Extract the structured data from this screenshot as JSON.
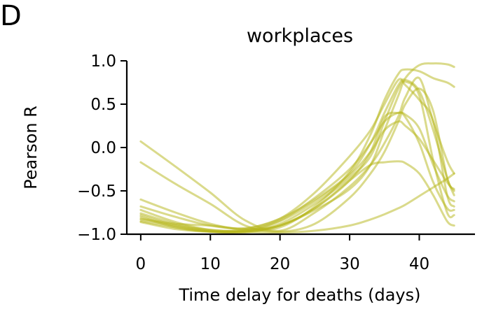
{
  "panel_label": "D",
  "chart_data": {
    "type": "line",
    "title": "workplaces",
    "xlabel": "Time delay for deaths (days)",
    "ylabel": "Pearson R",
    "xlim": [
      -2,
      48
    ],
    "ylim": [
      -1.0,
      1.0
    ],
    "xticks": [
      0,
      10,
      20,
      30,
      40
    ],
    "xtick_labels": [
      "0",
      "10",
      "20",
      "30",
      "40"
    ],
    "yticks": [
      -1.0,
      -0.5,
      0.0,
      0.5,
      1.0
    ],
    "ytick_labels": [
      "−1.0",
      "−0.5",
      "0.0",
      "0.5",
      "1.0"
    ],
    "grid": false,
    "line_color": "#b5b517",
    "x": [
      0,
      5,
      10,
      15,
      20,
      25,
      30,
      33,
      35,
      37,
      38,
      40,
      42,
      44,
      45
    ],
    "series": [
      {
        "values": [
          0.07,
          -0.22,
          -0.52,
          -0.84,
          -0.96,
          -0.75,
          -0.45,
          -0.2,
          0.05,
          0.36,
          0.58,
          0.8,
          0.3,
          -0.15,
          -0.3
        ]
      },
      {
        "values": [
          -0.17,
          -0.42,
          -0.65,
          -0.9,
          -0.97,
          -0.88,
          -0.58,
          -0.3,
          -0.05,
          0.3,
          0.5,
          0.68,
          0.42,
          -0.35,
          -0.48
        ]
      },
      {
        "values": [
          -0.6,
          -0.75,
          -0.88,
          -0.95,
          -0.92,
          -0.68,
          -0.28,
          0.15,
          0.55,
          0.85,
          0.9,
          0.88,
          0.8,
          0.75,
          0.7
        ]
      },
      {
        "values": [
          -0.68,
          -0.8,
          -0.9,
          -0.93,
          -0.82,
          -0.52,
          -0.1,
          0.2,
          0.5,
          0.78,
          0.72,
          0.55,
          0.3,
          -0.55,
          -0.68
        ]
      },
      {
        "values": [
          -0.72,
          -0.86,
          -0.95,
          -0.96,
          -0.84,
          -0.58,
          -0.25,
          0.05,
          0.3,
          0.4,
          0.35,
          0.05,
          -0.4,
          -0.7,
          -0.72
        ]
      },
      {
        "values": [
          -0.76,
          -0.88,
          -0.96,
          -0.97,
          -0.88,
          -0.65,
          -0.35,
          -0.1,
          0.3,
          0.68,
          0.76,
          0.6,
          -0.15,
          -0.75,
          -0.78
        ]
      },
      {
        "values": [
          -0.78,
          -0.9,
          -0.97,
          -0.98,
          -0.9,
          -0.7,
          -0.38,
          -0.05,
          0.35,
          0.4,
          0.38,
          0.22,
          -0.2,
          -0.55,
          -0.62
        ]
      },
      {
        "values": [
          -0.8,
          -0.92,
          -0.97,
          -0.96,
          -0.85,
          -0.62,
          -0.32,
          -0.05,
          0.2,
          0.3,
          0.25,
          0.1,
          -0.15,
          -0.4,
          -0.5
        ]
      },
      {
        "values": [
          -0.82,
          -0.88,
          -0.9,
          -0.94,
          -0.9,
          -0.7,
          -0.38,
          -0.2,
          -0.17,
          -0.16,
          -0.18,
          -0.3,
          -0.55,
          -0.85,
          -0.9
        ]
      },
      {
        "values": [
          -0.83,
          -0.9,
          -0.95,
          -0.97,
          -0.98,
          -0.96,
          -0.9,
          -0.83,
          -0.77,
          -0.7,
          -0.66,
          -0.56,
          -0.46,
          -0.36,
          -0.3
        ]
      },
      {
        "values": [
          -0.85,
          -0.92,
          -0.97,
          -0.97,
          -0.9,
          -0.72,
          -0.48,
          -0.2,
          0.2,
          0.6,
          0.8,
          0.95,
          0.97,
          0.96,
          0.93
        ]
      },
      {
        "values": [
          -0.86,
          -0.94,
          -0.97,
          -0.94,
          -0.82,
          -0.6,
          -0.3,
          0.05,
          0.4,
          0.72,
          0.78,
          0.65,
          0.2,
          -0.35,
          -0.55
        ]
      }
    ]
  }
}
